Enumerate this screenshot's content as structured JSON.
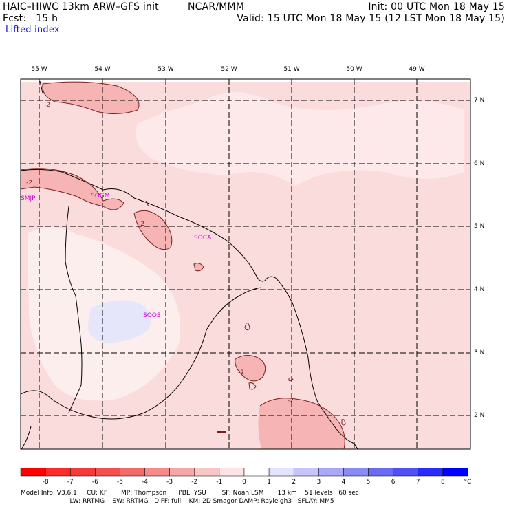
{
  "header": {
    "model_title": "HAIC–HIWC 13km ARW–GFS init",
    "org": "NCAR/MMM",
    "init": "Init: 00 UTC Mon 18 May 15",
    "fcst": "Fcst:   15 h",
    "valid": "Valid: 15 UTC Mon 18 May 15 (12 LST Mon 18 May 15)",
    "field": "Lifted index"
  },
  "map": {
    "lon_labels": [
      "55 W",
      "54 W",
      "53 W",
      "52 W",
      "51 W",
      "50 W",
      "49 W"
    ],
    "lat_labels": [
      "7 N",
      "6 N",
      "5 N",
      "4 N",
      "3 N",
      "2 N"
    ],
    "stations": [
      "SMJP",
      "SOGM",
      "SOCA",
      "SOOS"
    ],
    "contour_labels": [
      "-2",
      "-2",
      "-2",
      "-2",
      "-2",
      "-2"
    ],
    "colors": {
      "light_pink": "#fbdcdc",
      "mid_pink": "#f6b4b4",
      "pale_blue": "#e6e6fb",
      "contour": "#7a1f1f",
      "border": "#000000",
      "station": "#d000d0"
    }
  },
  "colorbar": {
    "labels": [
      "-8",
      "-7",
      "-6",
      "-5",
      "-4",
      "-3",
      "-2",
      "-1",
      "0",
      "1",
      "2",
      "3",
      "4",
      "5",
      "6",
      "7",
      "8"
    ],
    "unit": "°C",
    "colors": [
      "#ff0000",
      "#ff2a2a",
      "#f53a3a",
      "#f45050",
      "#f36a6a",
      "#f48a8a",
      "#f6a8a8",
      "#f9c6c6",
      "#fde3e3",
      "#ffffff",
      "#e3e3fd",
      "#c5c5f9",
      "#a8a8f6",
      "#8a8af4",
      "#6a6af3",
      "#5050f4",
      "#2a2aff",
      "#0000ff"
    ]
  },
  "footer": {
    "line1": "Model Info: V3.6.1     CU: KF       MP: Thompson      PBL: YSU        SF: Noah LSM       13 km    51 levels   60 sec",
    "line2": "                         LW: RRTMG    SW: RRTMG   DIFF: full    KM: 2D Smagor DAMP: Rayleigh3   SFLAY: MM5"
  }
}
